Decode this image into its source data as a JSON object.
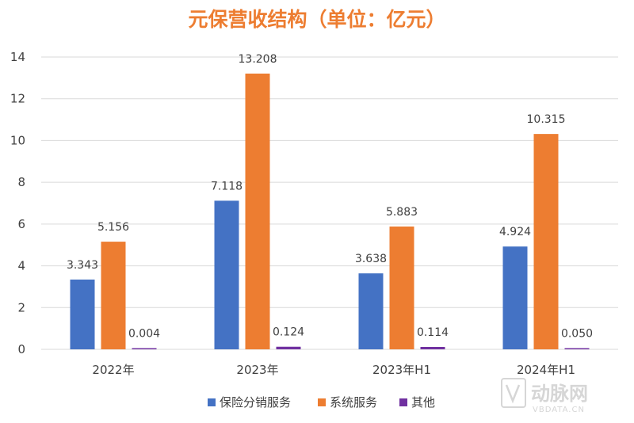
{
  "chart_data": {
    "type": "bar",
    "title": "元保营收结构（单位：亿元）",
    "categories": [
      "2022年",
      "2023年",
      "2023年H1",
      "2024年H1"
    ],
    "series": [
      {
        "name": "保险分销服务",
        "color": "#4472c4",
        "values": [
          3.343,
          7.118,
          3.638,
          4.924
        ],
        "labels": [
          "3.343",
          "7.118",
          "3.638",
          "4.924"
        ]
      },
      {
        "name": "系统服务",
        "color": "#ed7d31",
        "values": [
          5.156,
          13.208,
          5.883,
          10.315
        ],
        "labels": [
          "5.156",
          "13.208",
          "5.883",
          "10.315"
        ]
      },
      {
        "name": "其他",
        "color": "#7030a0",
        "values": [
          0.004,
          0.124,
          0.114,
          0.05
        ],
        "labels": [
          "0.004",
          "0.124",
          "0.114",
          "0.050"
        ]
      }
    ],
    "ylim": [
      0,
      14
    ],
    "yticks": [
      "0",
      "2",
      "4",
      "6",
      "8",
      "10",
      "12",
      "14"
    ],
    "grid": true,
    "legend_position": "bottom",
    "title_color": "#ed7d31"
  },
  "watermark": {
    "text": "动脉网",
    "sub": "VBDATA.CN"
  }
}
